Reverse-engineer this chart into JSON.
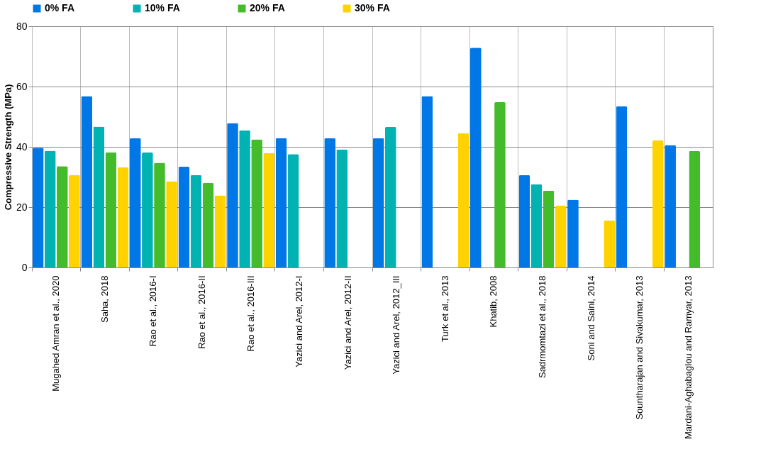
{
  "chart_data": {
    "type": "bar",
    "ylabel": "Compressive Strength (MPa)",
    "categories": [
      "Mugahed Amran et al., 2020",
      "Saha, 2018",
      "Rao et al., 2016-I",
      "Rao et al., 2016-II",
      "Rao et al., 2016-III",
      "Yazici and Arel, 2012-I",
      "Yazici and Arel, 2012-II",
      "Yazici and Arel, 2012_III",
      "Turk et al., 2013",
      "Khatib, 2008",
      "Sadrmomtazi et al., 2018",
      "Soni and Saini, 2014",
      "Sountharajan and Sivakumar, 2013",
      "Mardani-Aghabaglou and Ramyar, 2013"
    ],
    "series": [
      {
        "name": "0% FA",
        "color": "#0077e6",
        "values": [
          39.7,
          56.8,
          42.9,
          33.4,
          47.9,
          42.9,
          42.9,
          42.9,
          56.8,
          72.9,
          30.6,
          22.5,
          53.4,
          40.6
        ]
      },
      {
        "name": "10% FA",
        "color": "#00b2b2",
        "values": [
          38.7,
          46.7,
          38.1,
          30.6,
          45.5,
          37.6,
          39.1,
          46.6,
          null,
          null,
          27.6,
          null,
          null,
          null
        ]
      },
      {
        "name": "20% FA",
        "color": "#44bb2a",
        "values": [
          33.6,
          38.2,
          34.7,
          28.0,
          42.5,
          null,
          null,
          null,
          null,
          54.8,
          25.5,
          null,
          null,
          38.6
        ]
      },
      {
        "name": "30% FA",
        "color": "#ffd200",
        "values": [
          30.6,
          33.2,
          28.6,
          23.9,
          37.9,
          null,
          null,
          null,
          44.5,
          null,
          20.5,
          15.6,
          42.1,
          null
        ]
      }
    ],
    "ylim": [
      0,
      80
    ],
    "yticks": [
      0,
      20,
      40,
      60,
      80
    ],
    "grid": true,
    "legend": "top"
  }
}
